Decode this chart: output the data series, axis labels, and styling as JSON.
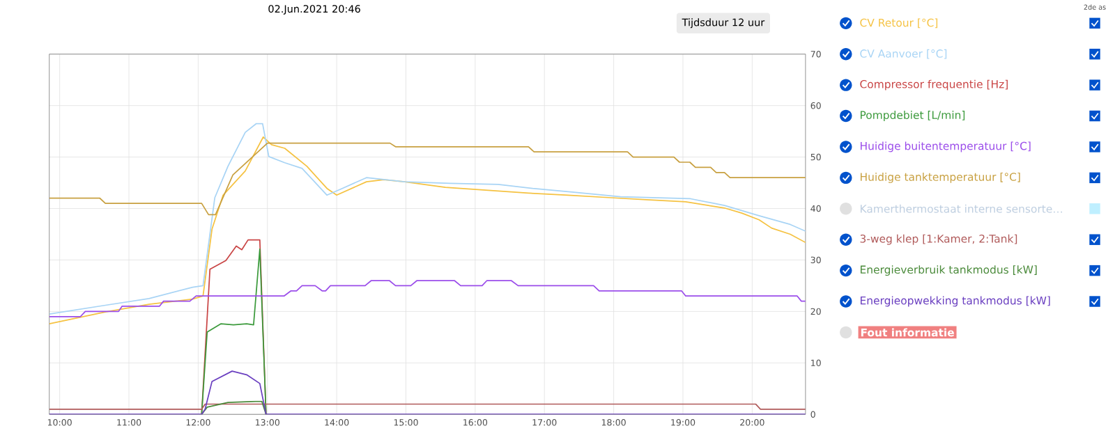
{
  "chart_data": {
    "type": "line",
    "title": "02.Jun.2021 20:46",
    "annotations": [
      "Tijdsduur 12 uur",
      "2de as",
      "Kamerthermostaat interne sensorte…",
      "Fout informatie"
    ],
    "xlim": [
      9.85,
      20.77
    ],
    "ylim": [
      0,
      70
    ],
    "xticks": [
      {
        "value": 10,
        "label": "10:00"
      },
      {
        "value": 11,
        "label": "11:00"
      },
      {
        "value": 12,
        "label": "12:00"
      },
      {
        "value": 13,
        "label": "13:00"
      },
      {
        "value": 14,
        "label": "14:00"
      },
      {
        "value": 15,
        "label": "15:00"
      },
      {
        "value": 16,
        "label": "16:00"
      },
      {
        "value": 17,
        "label": "17:00"
      },
      {
        "value": 18,
        "label": "18:00"
      },
      {
        "value": 19,
        "label": "19:00"
      },
      {
        "value": 20,
        "label": "20:00"
      }
    ],
    "yticks": [
      0,
      10,
      20,
      30,
      40,
      50,
      60,
      70
    ],
    "grid": true,
    "legend": "right",
    "marker": "none",
    "line_style": "solid",
    "series": [
      {
        "name": "CV Retour [°C]",
        "color": "#f5c242",
        "x": [
          9.85,
          10.66,
          11.29,
          11.92,
          12.07,
          12.2,
          12.36,
          12.68,
          12.94,
          13.06,
          13.25,
          13.57,
          13.86,
          14.0,
          14.43,
          14.68,
          14.98,
          15.57,
          16.77,
          17.34,
          17.96,
          18.47,
          19.04,
          19.6,
          19.85,
          20.1,
          20.28,
          20.55,
          20.77
        ],
        "values": [
          17.6,
          19.9,
          21.4,
          22.4,
          23,
          36,
          42.6,
          47.3,
          53.9,
          52.4,
          51.7,
          48.2,
          43.9,
          42.6,
          45.2,
          45.6,
          45.2,
          44.1,
          43,
          42.6,
          42.1,
          41.7,
          41.3,
          40.1,
          39.1,
          37.8,
          36.2,
          35,
          33.4
        ]
      },
      {
        "name": "CV Aanvoer [°C]",
        "color": "#a8d4f5",
        "x": [
          9.85,
          10.66,
          11.29,
          11.92,
          12.07,
          12.24,
          12.43,
          12.68,
          12.84,
          12.93,
          13.02,
          13.25,
          13.5,
          13.86,
          14.08,
          14.43,
          14.98,
          15.64,
          16.33,
          16.83,
          17.4,
          18.1,
          19.11,
          19.6,
          20.1,
          20.55,
          20.77
        ],
        "values": [
          19.5,
          21.2,
          22.5,
          24.7,
          25,
          42.1,
          48.2,
          54.8,
          56.5,
          56.5,
          50.1,
          48.9,
          47.8,
          42.6,
          43.9,
          46,
          45.2,
          44.9,
          44.7,
          43.9,
          43.2,
          42.3,
          41.9,
          40.6,
          38.6,
          36.9,
          35.6
        ]
      },
      {
        "name": "Compressor frequentie [Hz]",
        "color": "#c94545",
        "x": [
          12.05,
          12.17,
          12.4,
          12.55,
          12.63,
          12.72,
          12.89,
          12.98
        ],
        "values": [
          0,
          28.2,
          29.9,
          32.7,
          32,
          33.9,
          33.9,
          0
        ]
      },
      {
        "name": "Pompdebiet [L/min]",
        "color": "#3c9a3c",
        "x": [
          12.05,
          12.13,
          12.33,
          12.51,
          12.7,
          12.8,
          12.89,
          12.98
        ],
        "values": [
          0,
          16,
          17.6,
          17.4,
          17.6,
          17.4,
          32.1,
          0
        ]
      },
      {
        "name": "Huidige buitentemperatuur [°C]",
        "color": "#9b4dea",
        "x": [
          9.85,
          10.3,
          10.37,
          10.85,
          10.9,
          11.44,
          11.5,
          11.88,
          11.97,
          13.24,
          13.34,
          13.42,
          13.5,
          13.69,
          13.79,
          13.84,
          13.91,
          14.41,
          14.5,
          14.76,
          14.85,
          15.07,
          15.16,
          15.7,
          15.79,
          16.1,
          16.17,
          16.52,
          16.62,
          17.71,
          17.79,
          18.98,
          19.04,
          20.65,
          20.71,
          20.77
        ],
        "values": [
          19,
          19,
          20,
          20,
          21,
          21,
          22,
          22,
          23,
          23,
          24,
          24,
          25,
          25,
          24,
          24,
          25,
          25,
          26,
          26,
          25,
          25,
          26,
          26,
          25,
          25,
          26,
          26,
          25,
          25,
          24,
          24,
          23,
          23,
          22,
          22
        ]
      },
      {
        "name": "Huidige tanktemperatuur [°C]",
        "color": "#c8a040",
        "x": [
          9.85,
          10.58,
          10.66,
          12.05,
          12.15,
          12.25,
          12.5,
          13.0,
          14.77,
          14.85,
          16.77,
          16.85,
          18.2,
          18.28,
          18.87,
          18.95,
          19.1,
          19.18,
          19.4,
          19.48,
          19.6,
          19.68,
          20.77
        ],
        "values": [
          42,
          42,
          41,
          41,
          38.8,
          38.8,
          46.5,
          52.7,
          52.7,
          52,
          52,
          51,
          51,
          50,
          50,
          49,
          49,
          48,
          48,
          47,
          47,
          46,
          46
        ]
      },
      {
        "name": "3-weg klep [1:Kamer, 2:Tank]",
        "color": "#b05a5a",
        "x": [
          9.85,
          12.05,
          12.1,
          20.05,
          20.12,
          20.77
        ],
        "values": [
          1,
          1,
          2,
          2,
          1,
          1
        ]
      },
      {
        "name": "Energieverbruik tankmodus [kW]",
        "color": "#4a8a3a",
        "x": [
          12.05,
          12.13,
          12.43,
          12.83,
          12.92,
          12.98
        ],
        "values": [
          0,
          1.4,
          2.3,
          2.5,
          2.5,
          0
        ]
      },
      {
        "name": "Energieopwekking tankmodus [kW]",
        "color": "#6a3fc0",
        "x": [
          9.85,
          12.05,
          12.1,
          12.2,
          12.49,
          12.7,
          12.89,
          12.98,
          20.77
        ],
        "values": [
          0,
          0,
          1,
          6.4,
          8.4,
          7.7,
          6,
          0,
          0
        ]
      }
    ]
  }
}
